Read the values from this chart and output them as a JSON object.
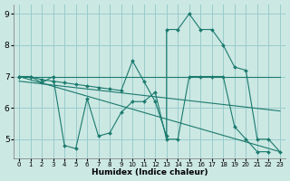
{
  "xlabel": "Humidex (Indice chaleur)",
  "background_color": "#cce8e3",
  "grid_color": "#99cccc",
  "line_color": "#1a7a6e",
  "xlim": [
    -0.5,
    23.5
  ],
  "ylim": [
    4.4,
    9.3
  ],
  "xticks": [
    0,
    1,
    2,
    3,
    4,
    5,
    6,
    7,
    8,
    9,
    10,
    11,
    12,
    13,
    14,
    15,
    16,
    17,
    18,
    19,
    20,
    21,
    22,
    23
  ],
  "yticks": [
    5,
    6,
    7,
    8,
    9
  ],
  "series": [
    {
      "x": [
        0,
        1,
        2,
        3,
        4,
        5,
        6,
        7,
        8,
        9,
        10,
        11,
        12,
        13,
        14,
        15,
        16,
        17,
        18,
        19,
        20,
        21,
        22
      ],
      "y": [
        7.0,
        7.0,
        6.8,
        7.0,
        4.8,
        4.7,
        6.3,
        5.1,
        5.2,
        5.85,
        6.2,
        6.2,
        6.5,
        5.0,
        5.0,
        7.0,
        7.0,
        7.0,
        7.0,
        5.4,
        5.0,
        4.6,
        4.6
      ],
      "has_markers": true
    },
    {
      "x": [
        0,
        23
      ],
      "y": [
        7.0,
        4.6
      ],
      "has_markers": false
    },
    {
      "x": [
        0,
        23
      ],
      "y": [
        6.85,
        5.9
      ],
      "has_markers": false
    },
    {
      "x": [
        0,
        23
      ],
      "y": [
        7.0,
        7.0
      ],
      "has_markers": false
    },
    {
      "x": [
        0,
        1,
        2,
        3,
        4,
        5,
        6,
        7,
        8,
        9,
        10,
        11,
        12,
        13,
        13,
        14,
        15,
        16,
        17,
        18,
        19,
        20,
        21,
        22,
        23
      ],
      "y": [
        7.0,
        7.0,
        6.9,
        6.85,
        6.8,
        6.75,
        6.7,
        6.65,
        6.6,
        6.55,
        7.5,
        6.85,
        6.2,
        5.1,
        8.5,
        8.5,
        9.0,
        8.5,
        8.5,
        8.0,
        7.3,
        7.2,
        5.0,
        5.0,
        4.6
      ],
      "has_markers": true
    }
  ]
}
